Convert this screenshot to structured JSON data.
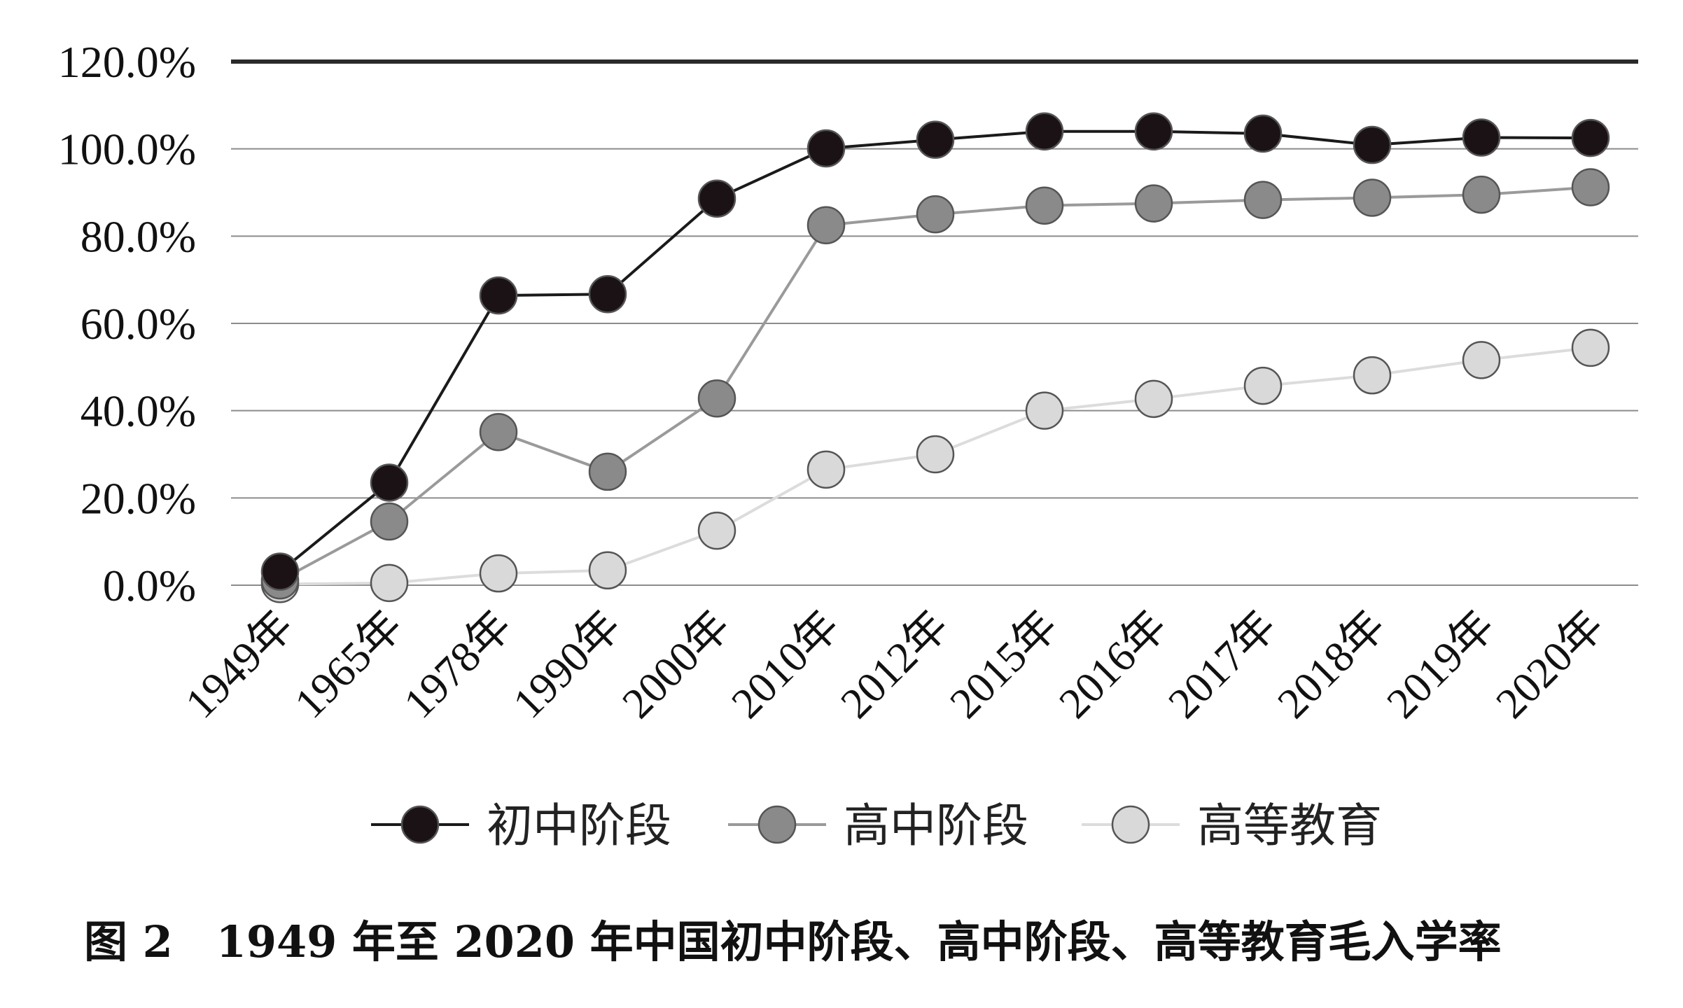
{
  "chart_data": {
    "type": "line",
    "categories": [
      "1949年",
      "1965年",
      "1978年",
      "1990年",
      "2000年",
      "2010年",
      "2012年",
      "2015年",
      "2016年",
      "2017年",
      "2018年",
      "2019年",
      "2020年"
    ],
    "y_ticks": [
      "0.0%",
      "20.0%",
      "40.0%",
      "60.0%",
      "80.0%",
      "100.0%",
      "120.0%"
    ],
    "ylim": [
      0,
      120
    ],
    "grid": true,
    "legend_position": "bottom",
    "caption": "图 2　1949 年至 2020 年中国初中阶段、高中阶段、高等教育毛入学率",
    "series": [
      {
        "name": "初中阶段",
        "color": "#1a1214",
        "line_color": "#1a1a1a",
        "values": [
          3.1,
          23.5,
          66.4,
          66.7,
          88.6,
          100.1,
          102.1,
          104.0,
          104.0,
          103.5,
          100.9,
          102.6,
          102.5
        ]
      },
      {
        "name": "高中阶段",
        "color": "#8a8a8a",
        "line_color": "#9a9a9a",
        "values": [
          1.1,
          14.6,
          35.1,
          26.0,
          42.8,
          82.5,
          85.0,
          87.0,
          87.5,
          88.3,
          88.8,
          89.5,
          91.2
        ]
      },
      {
        "name": "高等教育",
        "color": "#d9d9d9",
        "line_color": "#dcdcdc",
        "values": [
          0.26,
          0.5,
          2.7,
          3.4,
          12.5,
          26.5,
          30.0,
          40.0,
          42.7,
          45.7,
          48.1,
          51.6,
          54.4
        ]
      }
    ]
  }
}
